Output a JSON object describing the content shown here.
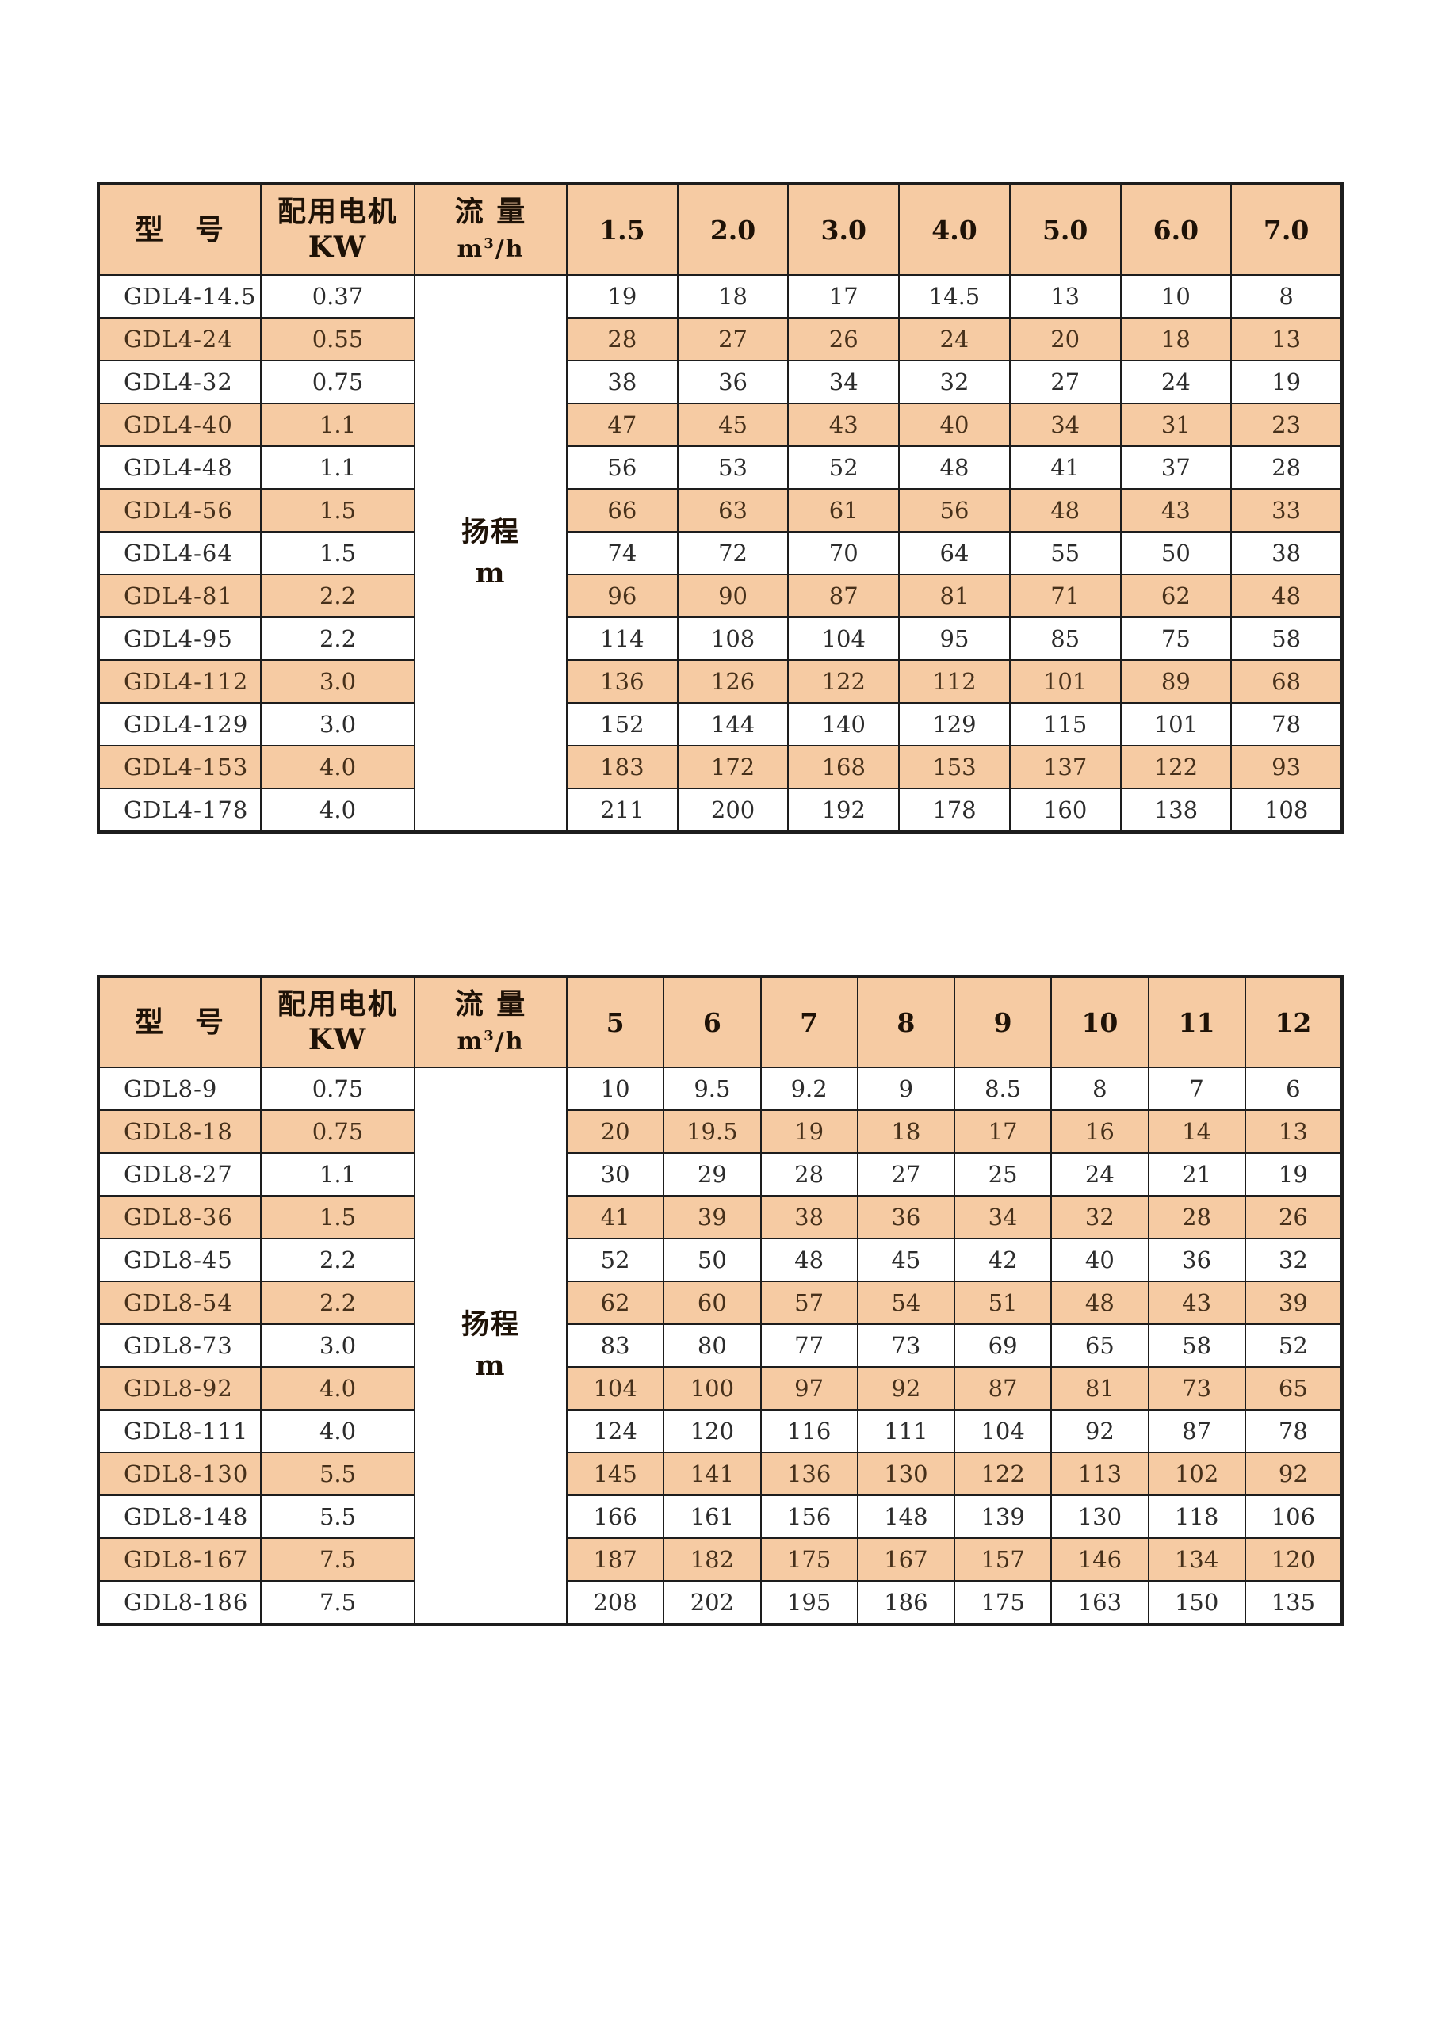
{
  "colors": {
    "header_bg": "#f6cba3",
    "stripe_bg": "#f6cba3",
    "row_bg": "#ffffff",
    "border": "#1d1d1d",
    "text": "#2c2c2c",
    "stripe_text": "#46301a"
  },
  "tables": [
    {
      "id": "table-gdl4",
      "name": "pump-table-gdl4",
      "header": {
        "model_label": "型　号",
        "motor_lines": [
          "配用电机",
          "KW"
        ],
        "flow_label": "流 量",
        "flow_unit": {
          "base": "m",
          "sup": "3",
          "rest": "/h"
        },
        "flow_cols": [
          "1.5",
          "2.0",
          "3.0",
          "4.0",
          "5.0",
          "6.0",
          "7.0"
        ]
      },
      "merged_label_lines": [
        "扬程",
        "m"
      ],
      "rows": [
        {
          "model": "GDL4-14.5",
          "kw": "0.37",
          "heads": [
            "19",
            "18",
            "17",
            "14.5",
            "13",
            "10",
            "8"
          ]
        },
        {
          "model": "GDL4-24",
          "kw": "0.55",
          "heads": [
            "28",
            "27",
            "26",
            "24",
            "20",
            "18",
            "13"
          ]
        },
        {
          "model": "GDL4-32",
          "kw": "0.75",
          "heads": [
            "38",
            "36",
            "34",
            "32",
            "27",
            "24",
            "19"
          ]
        },
        {
          "model": "GDL4-40",
          "kw": "1.1",
          "heads": [
            "47",
            "45",
            "43",
            "40",
            "34",
            "31",
            "23"
          ]
        },
        {
          "model": "GDL4-48",
          "kw": "1.1",
          "heads": [
            "56",
            "53",
            "52",
            "48",
            "41",
            "37",
            "28"
          ]
        },
        {
          "model": "GDL4-56",
          "kw": "1.5",
          "heads": [
            "66",
            "63",
            "61",
            "56",
            "48",
            "43",
            "33"
          ]
        },
        {
          "model": "GDL4-64",
          "kw": "1.5",
          "heads": [
            "74",
            "72",
            "70",
            "64",
            "55",
            "50",
            "38"
          ]
        },
        {
          "model": "GDL4-81",
          "kw": "2.2",
          "heads": [
            "96",
            "90",
            "87",
            "81",
            "71",
            "62",
            "48"
          ]
        },
        {
          "model": "GDL4-95",
          "kw": "2.2",
          "heads": [
            "114",
            "108",
            "104",
            "95",
            "85",
            "75",
            "58"
          ]
        },
        {
          "model": "GDL4-112",
          "kw": "3.0",
          "heads": [
            "136",
            "126",
            "122",
            "112",
            "101",
            "89",
            "68"
          ]
        },
        {
          "model": "GDL4-129",
          "kw": "3.0",
          "heads": [
            "152",
            "144",
            "140",
            "129",
            "115",
            "101",
            "78"
          ]
        },
        {
          "model": "GDL4-153",
          "kw": "4.0",
          "heads": [
            "183",
            "172",
            "168",
            "153",
            "137",
            "122",
            "93"
          ]
        },
        {
          "model": "GDL4-178",
          "kw": "4.0",
          "heads": [
            "211",
            "200",
            "192",
            "178",
            "160",
            "138",
            "108"
          ]
        }
      ]
    },
    {
      "id": "table-gdl8",
      "name": "pump-table-gdl8",
      "header": {
        "model_label": "型　号",
        "motor_lines": [
          "配用电机",
          "KW"
        ],
        "flow_label": "流 量",
        "flow_unit": {
          "base": "m",
          "sup": "3",
          "rest": "/h"
        },
        "flow_cols": [
          "5",
          "6",
          "7",
          "8",
          "9",
          "10",
          "11",
          "12"
        ]
      },
      "merged_label_lines": [
        "扬程",
        "m"
      ],
      "rows": [
        {
          "model": "GDL8-9",
          "kw": "0.75",
          "heads": [
            "10",
            "9.5",
            "9.2",
            "9",
            "8.5",
            "8",
            "7",
            "6"
          ]
        },
        {
          "model": "GDL8-18",
          "kw": "0.75",
          "heads": [
            "20",
            "19.5",
            "19",
            "18",
            "17",
            "16",
            "14",
            "13"
          ]
        },
        {
          "model": "GDL8-27",
          "kw": "1.1",
          "heads": [
            "30",
            "29",
            "28",
            "27",
            "25",
            "24",
            "21",
            "19"
          ]
        },
        {
          "model": "GDL8-36",
          "kw": "1.5",
          "heads": [
            "41",
            "39",
            "38",
            "36",
            "34",
            "32",
            "28",
            "26"
          ]
        },
        {
          "model": "GDL8-45",
          "kw": "2.2",
          "heads": [
            "52",
            "50",
            "48",
            "45",
            "42",
            "40",
            "36",
            "32"
          ]
        },
        {
          "model": "GDL8-54",
          "kw": "2.2",
          "heads": [
            "62",
            "60",
            "57",
            "54",
            "51",
            "48",
            "43",
            "39"
          ]
        },
        {
          "model": "GDL8-73",
          "kw": "3.0",
          "heads": [
            "83",
            "80",
            "77",
            "73",
            "69",
            "65",
            "58",
            "52"
          ]
        },
        {
          "model": "GDL8-92",
          "kw": "4.0",
          "heads": [
            "104",
            "100",
            "97",
            "92",
            "87",
            "81",
            "73",
            "65"
          ]
        },
        {
          "model": "GDL8-111",
          "kw": "4.0",
          "heads": [
            "124",
            "120",
            "116",
            "111",
            "104",
            "92",
            "87",
            "78"
          ]
        },
        {
          "model": "GDL8-130",
          "kw": "5.5",
          "heads": [
            "145",
            "141",
            "136",
            "130",
            "122",
            "113",
            "102",
            "92"
          ]
        },
        {
          "model": "GDL8-148",
          "kw": "5.5",
          "heads": [
            "166",
            "161",
            "156",
            "148",
            "139",
            "130",
            "118",
            "106"
          ]
        },
        {
          "model": "GDL8-167",
          "kw": "7.5",
          "heads": [
            "187",
            "182",
            "175",
            "167",
            "157",
            "146",
            "134",
            "120"
          ]
        },
        {
          "model": "GDL8-186",
          "kw": "7.5",
          "heads": [
            "208",
            "202",
            "195",
            "186",
            "175",
            "163",
            "150",
            "135"
          ]
        }
      ]
    }
  ]
}
